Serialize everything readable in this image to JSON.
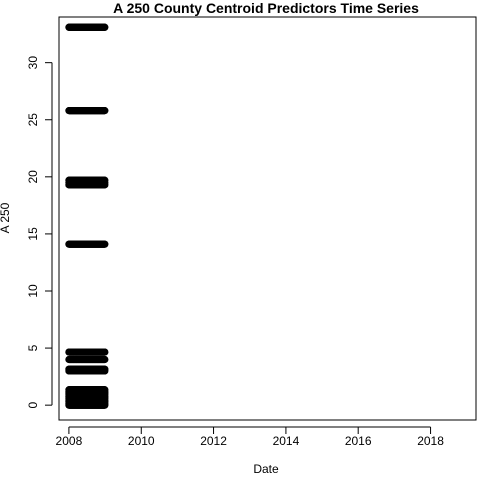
{
  "chart_data": {
    "type": "scatter",
    "title": "A 250 County Centroid Predictors Time Series",
    "xlabel": "Date",
    "ylabel": "A 250",
    "x_axis": {
      "kind": "date",
      "range": [
        "2007-09-23",
        "2019-04-05"
      ],
      "ticks": [
        "2008",
        "2010",
        "2012",
        "2014",
        "2016",
        "2018"
      ]
    },
    "y_axis": {
      "range": [
        -1.3,
        34.0
      ],
      "ticks": [
        0,
        5,
        10,
        15,
        20,
        25,
        30
      ]
    },
    "grid": false,
    "legend": "none",
    "point_color": "#000000",
    "series": [
      {
        "date_range": [
          "2008-01-01",
          "2008-12-31"
        ],
        "y_levels": [
          0.0,
          0.15,
          0.3,
          0.45,
          0.6,
          0.75,
          0.9,
          1.05,
          1.2,
          1.35,
          3.0,
          3.15,
          4.0,
          4.65,
          14.1,
          19.3,
          19.5,
          19.7,
          25.8,
          33.1
        ]
      }
    ]
  }
}
